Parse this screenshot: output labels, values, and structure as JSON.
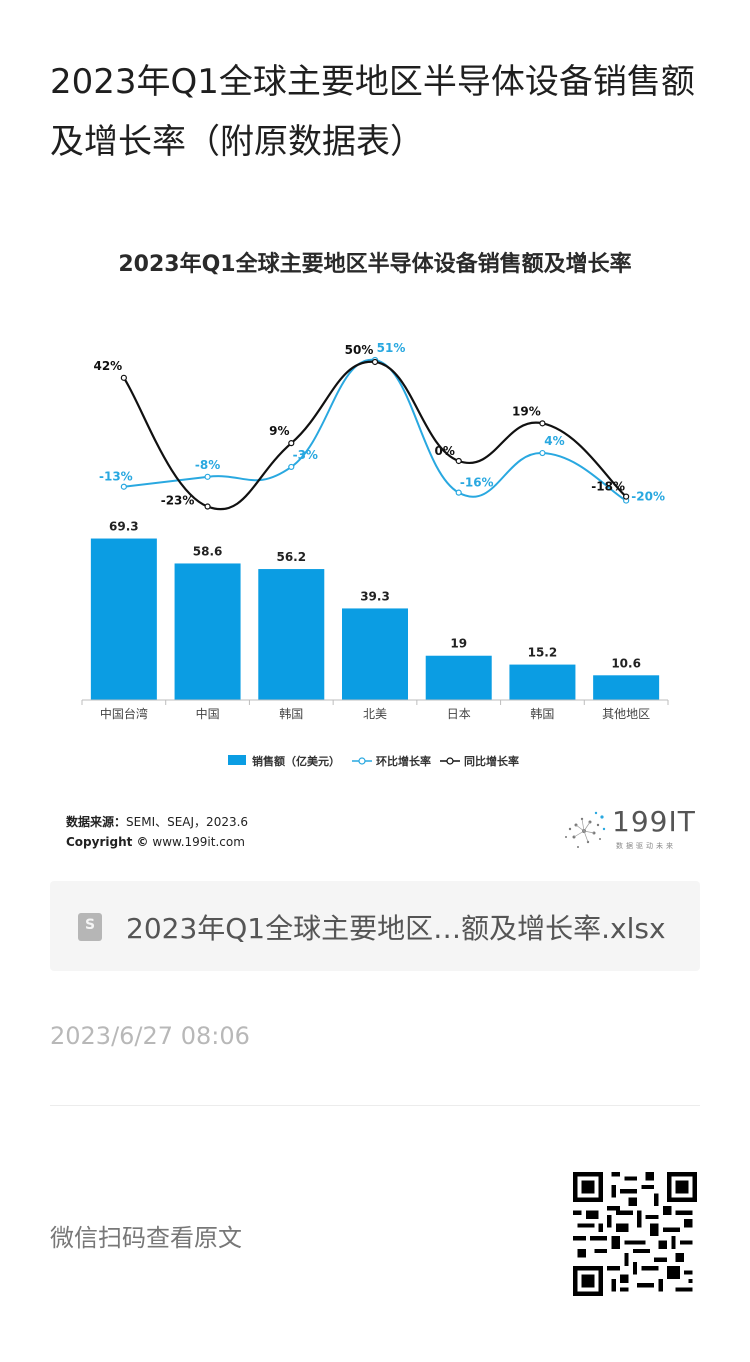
{
  "article": {
    "title": "2023年Q1全球主要地区半导体设备销售额及增长率（附原数据表）"
  },
  "chart": {
    "title": "2023年Q1全球主要地区半导体设备销售额及增长率",
    "source_label": "数据来源：",
    "source_value": "SEMI、SEAJ，2023.6",
    "copyright_label": "Copyright ©",
    "copyright_value": "www.199it.com",
    "legend": {
      "bar": "销售额（亿美元）",
      "qoq": "环比增长率",
      "yoy": "同比增长率"
    },
    "colors": {
      "bar": "#0b9de3",
      "qoq": "#29a8e0",
      "yoy": "#111111"
    }
  },
  "chart_data": {
    "type": "bar",
    "title": "2023年Q1全球主要地区半导体设备销售额及增长率",
    "categories": [
      "中国台湾",
      "中国",
      "韩国",
      "北美",
      "日本",
      "韩国",
      "其他地区"
    ],
    "series": [
      {
        "name": "销售额（亿美元）",
        "type": "bar",
        "values": [
          69.3,
          58.6,
          56.2,
          39.3,
          19,
          15.2,
          10.6
        ]
      },
      {
        "name": "环比增长率",
        "type": "line",
        "values": [
          -13,
          -8,
          -3,
          51,
          -16,
          4,
          -20
        ],
        "labels": [
          "-13%",
          "-8%",
          "-3%",
          "51%",
          "-16%",
          "4%",
          "-20%"
        ]
      },
      {
        "name": "同比增长率",
        "type": "line",
        "values": [
          42,
          -23,
          9,
          50,
          0,
          19,
          -18
        ],
        "labels": [
          "42%",
          "-23%",
          "9%",
          "50%",
          "0%",
          "19%",
          "-18%"
        ]
      }
    ],
    "bar_labels": [
      "69.3",
      "58.6",
      "56.2",
      "39.3",
      "19",
      "15.2",
      "10.6"
    ],
    "legend_position": "bottom"
  },
  "attachment": {
    "file_name": "2023年Q1全球主要地区…额及增长率.xlsx",
    "icon": "spreadsheet-file-icon"
  },
  "meta": {
    "timestamp": "2023/6/27 08:06",
    "scan_prompt": "微信扫码查看原文"
  },
  "logo": {
    "text": "199IT",
    "sub": "数据驱动未来"
  }
}
